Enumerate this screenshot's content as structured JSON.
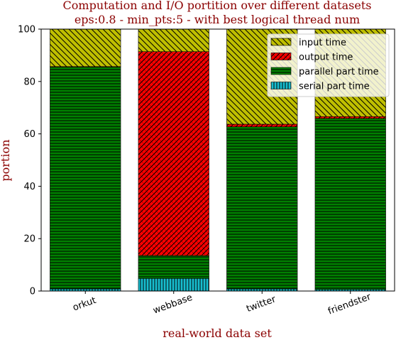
{
  "chart_data": {
    "type": "bar",
    "stacked": true,
    "title": "Computation and I/O portition over different datasets",
    "subtitle": "eps:0.8 - min_pts:5 - with best logical thread num",
    "xlabel": "real-world data set",
    "ylabel": "portion",
    "ylim": [
      0,
      100
    ],
    "yticks": [
      0,
      20,
      40,
      60,
      80,
      100
    ],
    "categories": [
      "orkut",
      "webbase",
      "twitter",
      "friendster"
    ],
    "series": [
      {
        "name": "serial part time",
        "color": "#17becf",
        "hatch": "vertical",
        "values": [
          0.8,
          4.8,
          0.8,
          0.6
        ]
      },
      {
        "name": "parallel part time",
        "color": "#008000",
        "hatch": "horizontal",
        "values": [
          84.7,
          8.7,
          61.9,
          65.3
        ]
      },
      {
        "name": "output time",
        "color": "#ff0000",
        "hatch": "diagonal-cross",
        "values": [
          0.2,
          77.9,
          1.0,
          0.7
        ]
      },
      {
        "name": "input time",
        "color": "#bfbf00",
        "hatch": "diagonal",
        "values": [
          14.3,
          8.6,
          36.3,
          33.4
        ]
      }
    ],
    "legend_order": [
      "input time",
      "output time",
      "parallel part time",
      "serial part time"
    ],
    "legend_position": "top-right",
    "grid": false
  }
}
